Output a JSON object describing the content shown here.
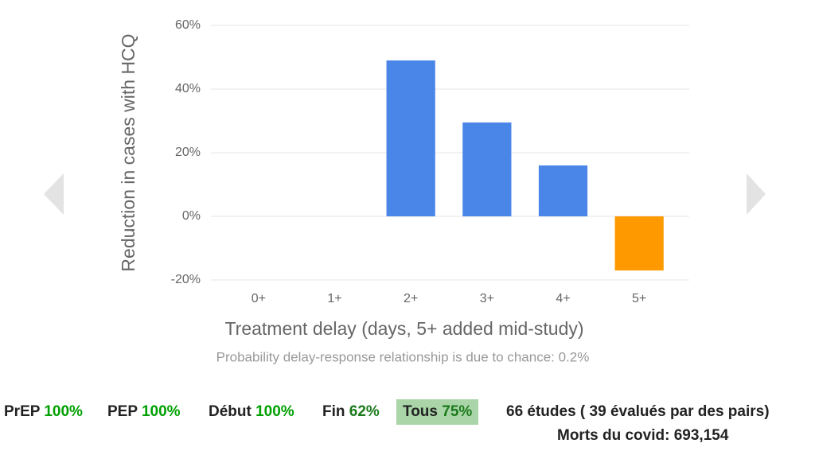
{
  "chart_data": {
    "type": "bar",
    "ylabel": "Reduction in cases with HCQ",
    "xlabel": "Treatment delay (days, 5+ added mid-study)",
    "subtitle": "Probability delay-response relationship is due to chance: 0.2%",
    "categories": [
      "0+",
      "1+",
      "2+",
      "3+",
      "4+",
      "5+"
    ],
    "values": [
      null,
      null,
      49,
      29.5,
      16,
      -17
    ],
    "colors": [
      null,
      null,
      "#4a86e8",
      "#4a86e8",
      "#4a86e8",
      "#ff9900"
    ],
    "ylim": [
      -20,
      60
    ],
    "yticks": [
      {
        "value": -20,
        "label": "-20%"
      },
      {
        "value": 0,
        "label": "0%"
      },
      {
        "value": 20,
        "label": "20%"
      },
      {
        "value": 40,
        "label": "40%"
      },
      {
        "value": 60,
        "label": "60%"
      }
    ],
    "grid": true
  },
  "stats": {
    "items": [
      {
        "label": "PrEP",
        "value": "100%",
        "color": "#00a000"
      },
      {
        "label": "PEP",
        "value": "100%",
        "color": "#00a000"
      },
      {
        "label": "Début",
        "value": "100%",
        "color": "#00a000"
      },
      {
        "label": "Fin",
        "value": "62%",
        "color": "#1b7a1b"
      },
      {
        "label": "Tous",
        "value": "75%",
        "color": "#1b7a1b"
      }
    ],
    "studies": "66 études ( 39 évalués par des pairs)",
    "deaths_label": "Morts du covid:",
    "deaths": "693,154"
  }
}
